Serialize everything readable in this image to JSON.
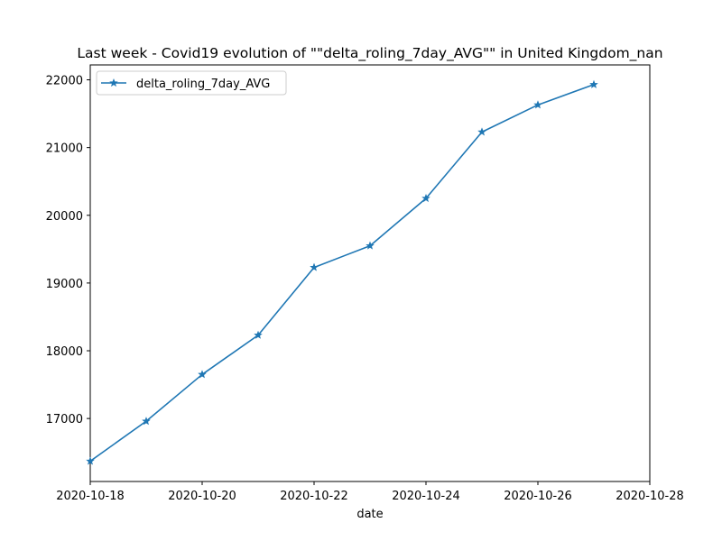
{
  "colors": {
    "series": "#1f77b4",
    "axes": "#000000",
    "legend_border": "#cccccc"
  },
  "chart_data": {
    "type": "line",
    "title": "Last week - Covid19 evolution of  \"\"delta_roling_7day_AVG\"\"  in United Kingdom_nan",
    "xlabel": "date",
    "ylabel": "",
    "x_scale": "date",
    "xlim": [
      "2020-10-18",
      "2020-10-28"
    ],
    "ylim": [
      16070,
      22220
    ],
    "grid": false,
    "legend_position": "upper-left",
    "marker": "star",
    "x_ticks": [
      "2020-10-18",
      "2020-10-20",
      "2020-10-22",
      "2020-10-24",
      "2020-10-26",
      "2020-10-28"
    ],
    "y_ticks": [
      17000,
      18000,
      19000,
      20000,
      21000,
      22000
    ],
    "x": [
      "2020-10-18",
      "2020-10-19",
      "2020-10-20",
      "2020-10-21",
      "2020-10-22",
      "2020-10-23",
      "2020-10-24",
      "2020-10-25",
      "2020-10-26",
      "2020-10-27"
    ],
    "series": [
      {
        "name": "delta_roling_7day_AVG",
        "values": [
          16370,
          16960,
          17650,
          18230,
          19230,
          19550,
          20250,
          21230,
          21630,
          21930
        ]
      }
    ]
  }
}
